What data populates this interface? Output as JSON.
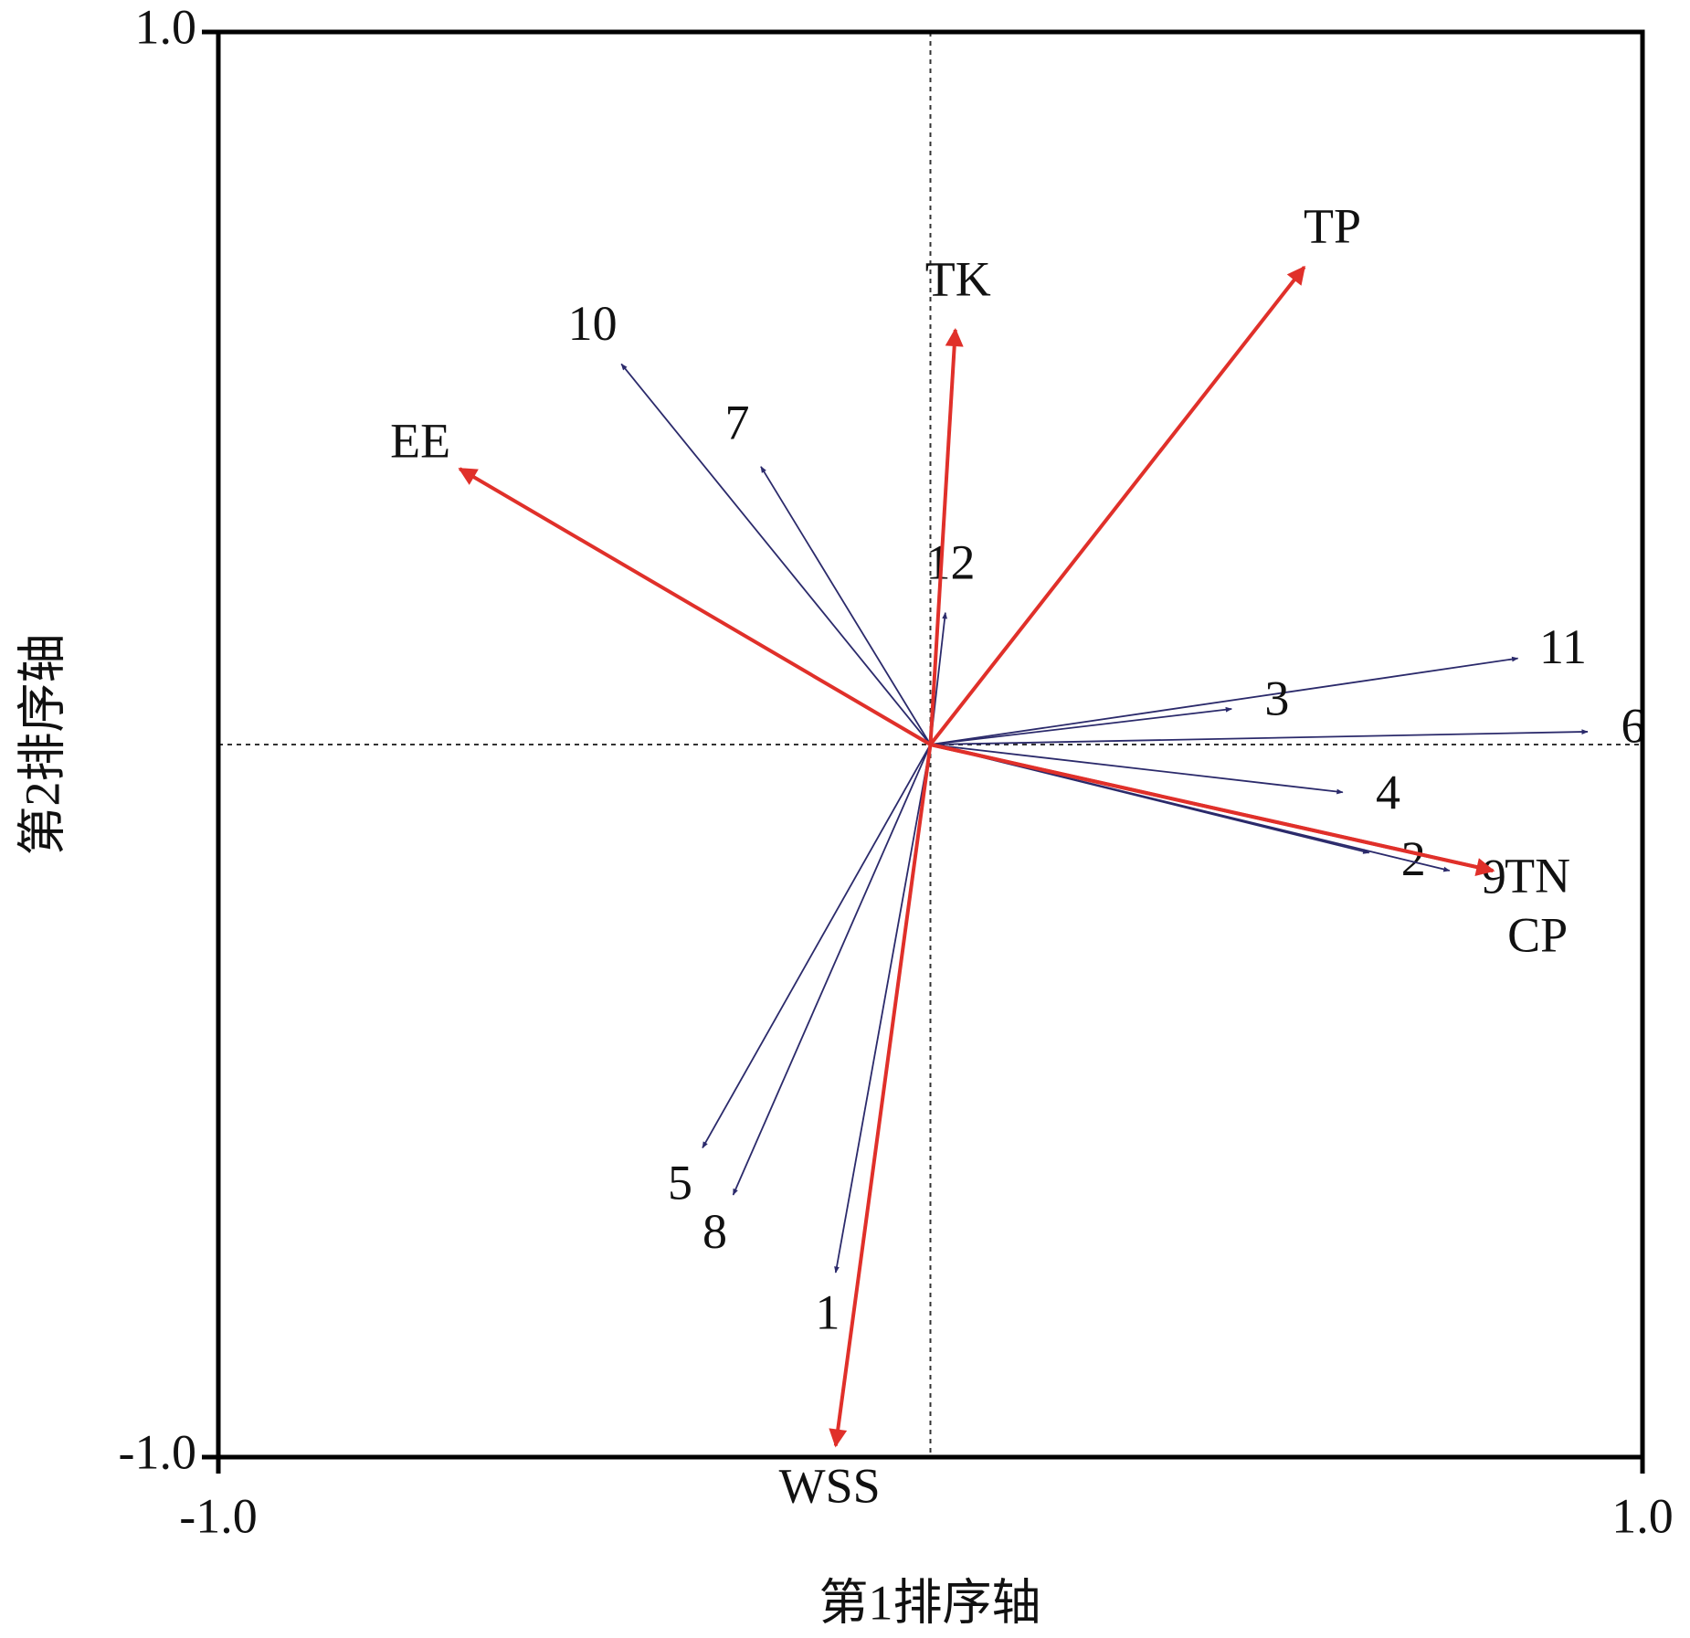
{
  "chart_data": {
    "type": "biplot",
    "xlabel": "第1排序轴",
    "ylabel": "第2排序轴",
    "xlim": [
      -1,
      1
    ],
    "ylim": [
      -1,
      1
    ],
    "xticks": [
      {
        "value": -1,
        "label": "-1.0"
      },
      {
        "value": 1,
        "label": "1.0"
      }
    ],
    "yticks": [
      {
        "value": -1,
        "label": "-1.0"
      },
      {
        "value": 1,
        "label": "1.0"
      }
    ],
    "series": [
      {
        "color": "#2b2a6b",
        "points": [
          {
            "label": "10",
            "x": -0.434,
            "y": 0.534
          },
          {
            "label": "7",
            "x": -0.238,
            "y": 0.39
          },
          {
            "label": "12",
            "x": 0.021,
            "y": 0.185
          },
          {
            "label": "11",
            "x": 0.825,
            "y": 0.121
          },
          {
            "label": "3",
            "x": 0.423,
            "y": 0.05
          },
          {
            "label": "6",
            "x": 0.923,
            "y": 0.018
          },
          {
            "label": "4",
            "x": 0.579,
            "y": -0.067
          },
          {
            "label": "2",
            "x": 0.616,
            "y": -0.152
          },
          {
            "label": "9",
            "x": 0.729,
            "y": -0.177
          },
          {
            "label": "5",
            "x": -0.32,
            "y": -0.566
          },
          {
            "label": "8",
            "x": -0.277,
            "y": -0.632
          },
          {
            "label": "1",
            "x": -0.133,
            "y": -0.741
          }
        ]
      },
      {
        "color": "#e0302a",
        "points": [
          {
            "label": "TK",
            "x": 0.035,
            "y": 0.582
          },
          {
            "label": "TP",
            "x": 0.525,
            "y": 0.67
          },
          {
            "label": "EE",
            "x": -0.661,
            "y": 0.387
          },
          {
            "label": "TN",
            "x": 0.79,
            "y": -0.177
          },
          {
            "label": "CP",
            "x": 0.79,
            "y": -0.177
          },
          {
            "label": "WSS",
            "x": -0.133,
            "y": -0.984
          }
        ]
      }
    ]
  }
}
